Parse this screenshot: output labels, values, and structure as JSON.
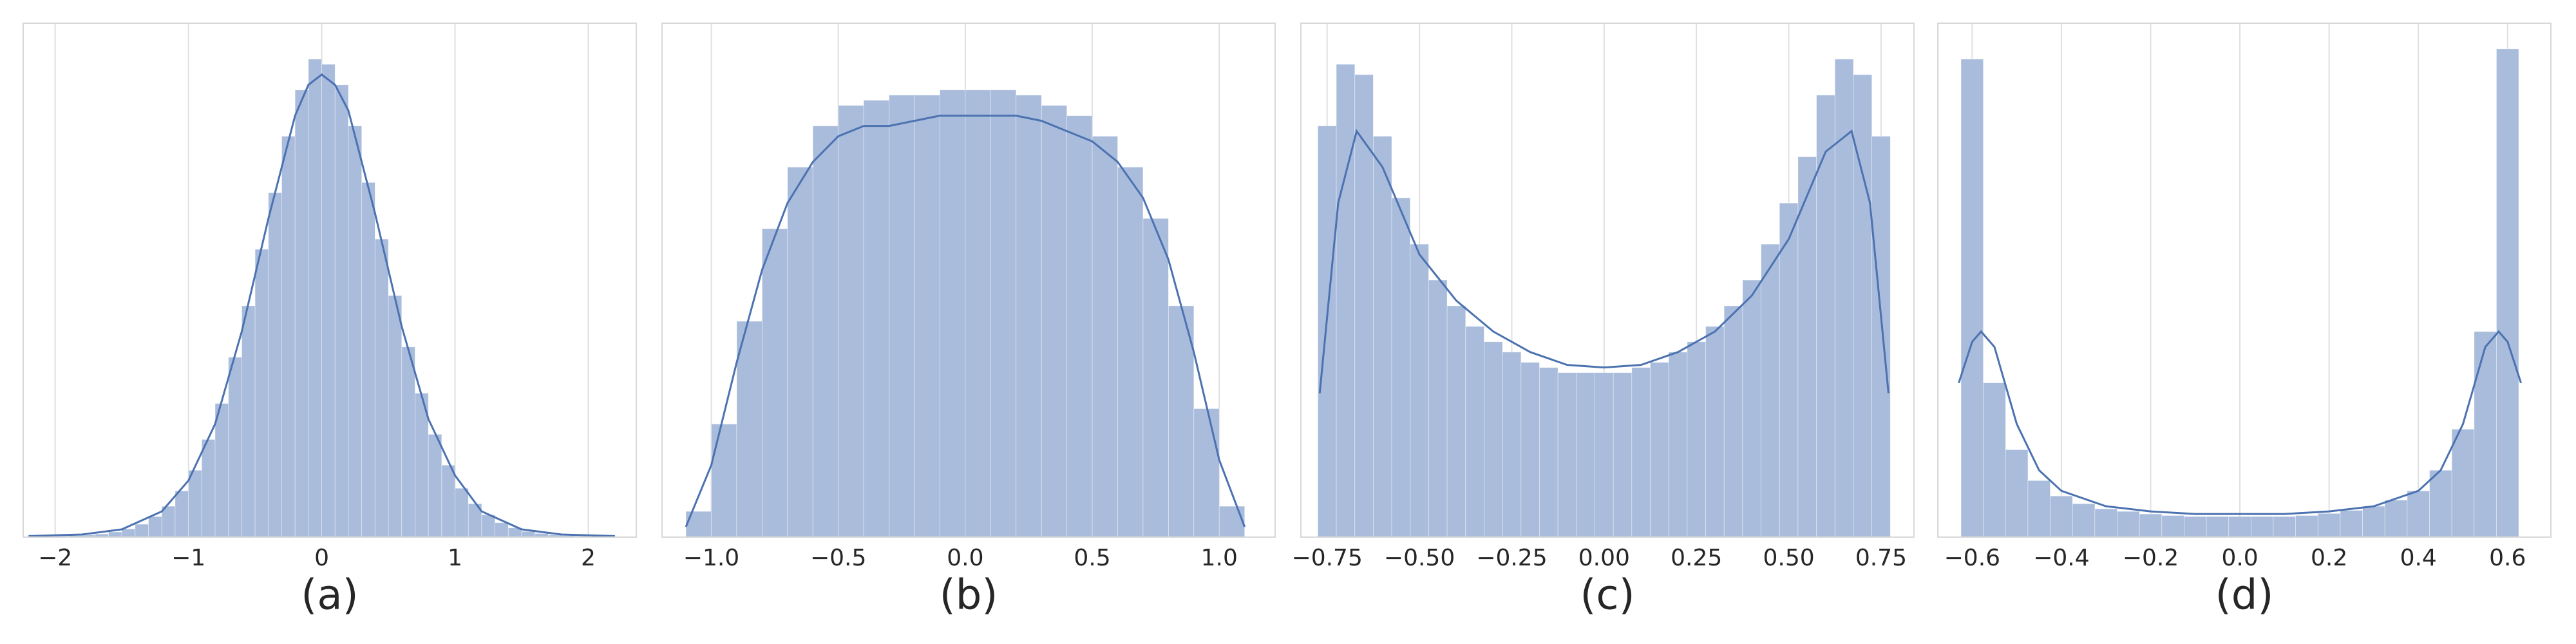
{
  "chart_data": [
    {
      "type": "histogram",
      "caption": "(a)",
      "color": "#a9bcdc",
      "line_color": "#4c72b0",
      "grid": true,
      "xlim": [
        -2.24,
        2.36
      ],
      "ylim": [
        0,
        1
      ],
      "xticks": [
        {
          "value": -2,
          "label": "−2"
        },
        {
          "value": -1,
          "label": "−1"
        },
        0,
        1,
        2
      ],
      "bins": [
        -2.0,
        -1.9,
        -1.8,
        -1.7,
        -1.6,
        -1.5,
        -1.4,
        -1.3,
        -1.2,
        -1.1,
        -1.0,
        -0.9,
        -0.8,
        -0.7,
        -0.6,
        -0.5,
        -0.4,
        -0.3,
        -0.2,
        -0.1,
        0.0,
        0.1,
        0.2,
        0.3,
        0.4,
        0.5,
        0.6,
        0.7,
        0.8,
        0.9,
        1.0,
        1.1,
        1.2,
        1.3,
        1.4,
        1.5,
        1.6,
        1.7,
        1.8,
        1.9,
        2.0,
        2.1
      ],
      "counts": [
        0.002,
        0.003,
        0.004,
        0.006,
        0.01,
        0.016,
        0.025,
        0.04,
        0.06,
        0.09,
        0.13,
        0.19,
        0.26,
        0.35,
        0.45,
        0.56,
        0.67,
        0.78,
        0.87,
        0.93,
        0.92,
        0.88,
        0.8,
        0.69,
        0.58,
        0.47,
        0.37,
        0.28,
        0.2,
        0.14,
        0.095,
        0.065,
        0.043,
        0.028,
        0.018,
        0.011,
        0.007,
        0.004,
        0.003,
        0.002,
        0.001
      ],
      "kde": {
        "x": [
          -2.2,
          -1.8,
          -1.5,
          -1.2,
          -1.0,
          -0.8,
          -0.6,
          -0.4,
          -0.2,
          -0.1,
          0,
          0.1,
          0.2,
          0.4,
          0.6,
          0.8,
          1.0,
          1.2,
          1.5,
          1.8,
          2.2
        ],
        "y": [
          0.002,
          0.005,
          0.015,
          0.05,
          0.11,
          0.22,
          0.4,
          0.62,
          0.82,
          0.88,
          0.9,
          0.88,
          0.83,
          0.63,
          0.41,
          0.23,
          0.12,
          0.05,
          0.015,
          0.005,
          0.002
        ]
      }
    },
    {
      "type": "histogram",
      "caption": "(b)",
      "color": "#a9bcdc",
      "line_color": "#4c72b0",
      "grid": true,
      "xlim": [
        -1.194,
        1.22
      ],
      "ylim": [
        0,
        1
      ],
      "xticks": [
        {
          "value": -1,
          "label": "−1.0"
        },
        {
          "value": -0.5,
          "label": "−0.5"
        },
        {
          "value": 0,
          "label": "0.0"
        },
        0.5,
        {
          "value": 1,
          "label": "1.0"
        }
      ],
      "bins": [
        -1.1,
        -1.0,
        -0.9,
        -0.8,
        -0.7,
        -0.6,
        -0.5,
        -0.4,
        -0.3,
        -0.2,
        -0.1,
        0.0,
        0.1,
        0.2,
        0.3,
        0.4,
        0.5,
        0.6,
        0.7,
        0.8,
        0.9,
        1.0,
        1.1
      ],
      "counts": [
        0.05,
        0.22,
        0.42,
        0.6,
        0.72,
        0.8,
        0.84,
        0.85,
        0.86,
        0.86,
        0.87,
        0.87,
        0.87,
        0.86,
        0.84,
        0.82,
        0.78,
        0.72,
        0.62,
        0.45,
        0.25,
        0.06
      ],
      "kde": {
        "x": [
          -1.1,
          -1.0,
          -0.9,
          -0.8,
          -0.7,
          -0.6,
          -0.5,
          -0.4,
          -0.3,
          -0.2,
          -0.1,
          0,
          0.1,
          0.2,
          0.3,
          0.4,
          0.5,
          0.6,
          0.7,
          0.8,
          0.9,
          1.0,
          1.1
        ],
        "y": [
          0.02,
          0.14,
          0.34,
          0.52,
          0.65,
          0.73,
          0.78,
          0.8,
          0.8,
          0.81,
          0.82,
          0.82,
          0.82,
          0.82,
          0.81,
          0.79,
          0.77,
          0.73,
          0.66,
          0.54,
          0.36,
          0.15,
          0.02
        ]
      }
    },
    {
      "type": "histogram",
      "caption": "(c)",
      "color": "#a9bcdc",
      "line_color": "#4c72b0",
      "grid": true,
      "xlim": [
        -0.821,
        0.839
      ],
      "ylim": [
        0,
        1
      ],
      "xticks": [
        {
          "value": -0.75,
          "label": "−0.75"
        },
        {
          "value": -0.5,
          "label": "−0.50"
        },
        {
          "value": -0.25,
          "label": "−0.25"
        },
        {
          "value": 0,
          "label": "0.00"
        },
        0.25,
        {
          "value": 0.5,
          "label": "0.50"
        },
        0.75
      ],
      "bins": [
        -0.775,
        -0.725,
        -0.675,
        -0.625,
        -0.575,
        -0.525,
        -0.475,
        -0.425,
        -0.375,
        -0.325,
        -0.275,
        -0.225,
        -0.175,
        -0.125,
        -0.075,
        -0.025,
        0.025,
        0.075,
        0.125,
        0.175,
        0.225,
        0.275,
        0.325,
        0.375,
        0.425,
        0.475,
        0.525,
        0.575,
        0.625,
        0.675,
        0.725,
        0.775
      ],
      "counts": [
        0.8,
        0.92,
        0.9,
        0.78,
        0.66,
        0.57,
        0.5,
        0.45,
        0.41,
        0.38,
        0.36,
        0.34,
        0.33,
        0.32,
        0.32,
        0.32,
        0.32,
        0.33,
        0.34,
        0.36,
        0.38,
        0.41,
        0.45,
        0.5,
        0.57,
        0.65,
        0.74,
        0.86,
        0.93,
        0.9,
        0.78
      ],
      "kde": {
        "x": [
          -0.77,
          -0.72,
          -0.67,
          -0.6,
          -0.5,
          -0.4,
          -0.3,
          -0.2,
          -0.1,
          0,
          0.1,
          0.2,
          0.3,
          0.4,
          0.5,
          0.6,
          0.67,
          0.72,
          0.77
        ],
        "y": [
          0.28,
          0.65,
          0.79,
          0.72,
          0.55,
          0.46,
          0.4,
          0.36,
          0.335,
          0.33,
          0.335,
          0.36,
          0.4,
          0.47,
          0.58,
          0.75,
          0.79,
          0.65,
          0.28
        ]
      }
    },
    {
      "type": "histogram",
      "caption": "(d)",
      "color": "#a9bcdc",
      "line_color": "#4c72b0",
      "grid": true,
      "xlim": [
        -0.677,
        0.697
      ],
      "ylim": [
        0,
        1
      ],
      "xticks": [
        {
          "value": -0.6,
          "label": "−0.6"
        },
        {
          "value": -0.4,
          "label": "−0.4"
        },
        {
          "value": -0.2,
          "label": "−0.2"
        },
        {
          "value": 0,
          "label": "0.0"
        },
        0.2,
        0.4,
        0.6
      ],
      "bins": [
        -0.625,
        -0.575,
        -0.525,
        -0.475,
        -0.425,
        -0.375,
        -0.325,
        -0.275,
        -0.225,
        -0.175,
        -0.125,
        -0.075,
        -0.025,
        0.025,
        0.075,
        0.125,
        0.175,
        0.225,
        0.275,
        0.325,
        0.375,
        0.425,
        0.475,
        0.525,
        0.575,
        0.625
      ],
      "counts": [
        0.93,
        0.3,
        0.17,
        0.11,
        0.08,
        0.065,
        0.055,
        0.05,
        0.045,
        0.042,
        0.04,
        0.04,
        0.04,
        0.04,
        0.04,
        0.042,
        0.046,
        0.052,
        0.06,
        0.072,
        0.09,
        0.13,
        0.21,
        0.4,
        0.95
      ],
      "kde": {
        "x": [
          -0.63,
          -0.6,
          -0.58,
          -0.55,
          -0.5,
          -0.45,
          -0.4,
          -0.3,
          -0.2,
          -0.1,
          0,
          0.1,
          0.2,
          0.3,
          0.4,
          0.45,
          0.5,
          0.55,
          0.58,
          0.6,
          0.63
        ],
        "y": [
          0.3,
          0.38,
          0.4,
          0.37,
          0.22,
          0.13,
          0.09,
          0.06,
          0.05,
          0.045,
          0.045,
          0.045,
          0.05,
          0.06,
          0.09,
          0.13,
          0.22,
          0.37,
          0.4,
          0.38,
          0.3
        ]
      }
    }
  ]
}
